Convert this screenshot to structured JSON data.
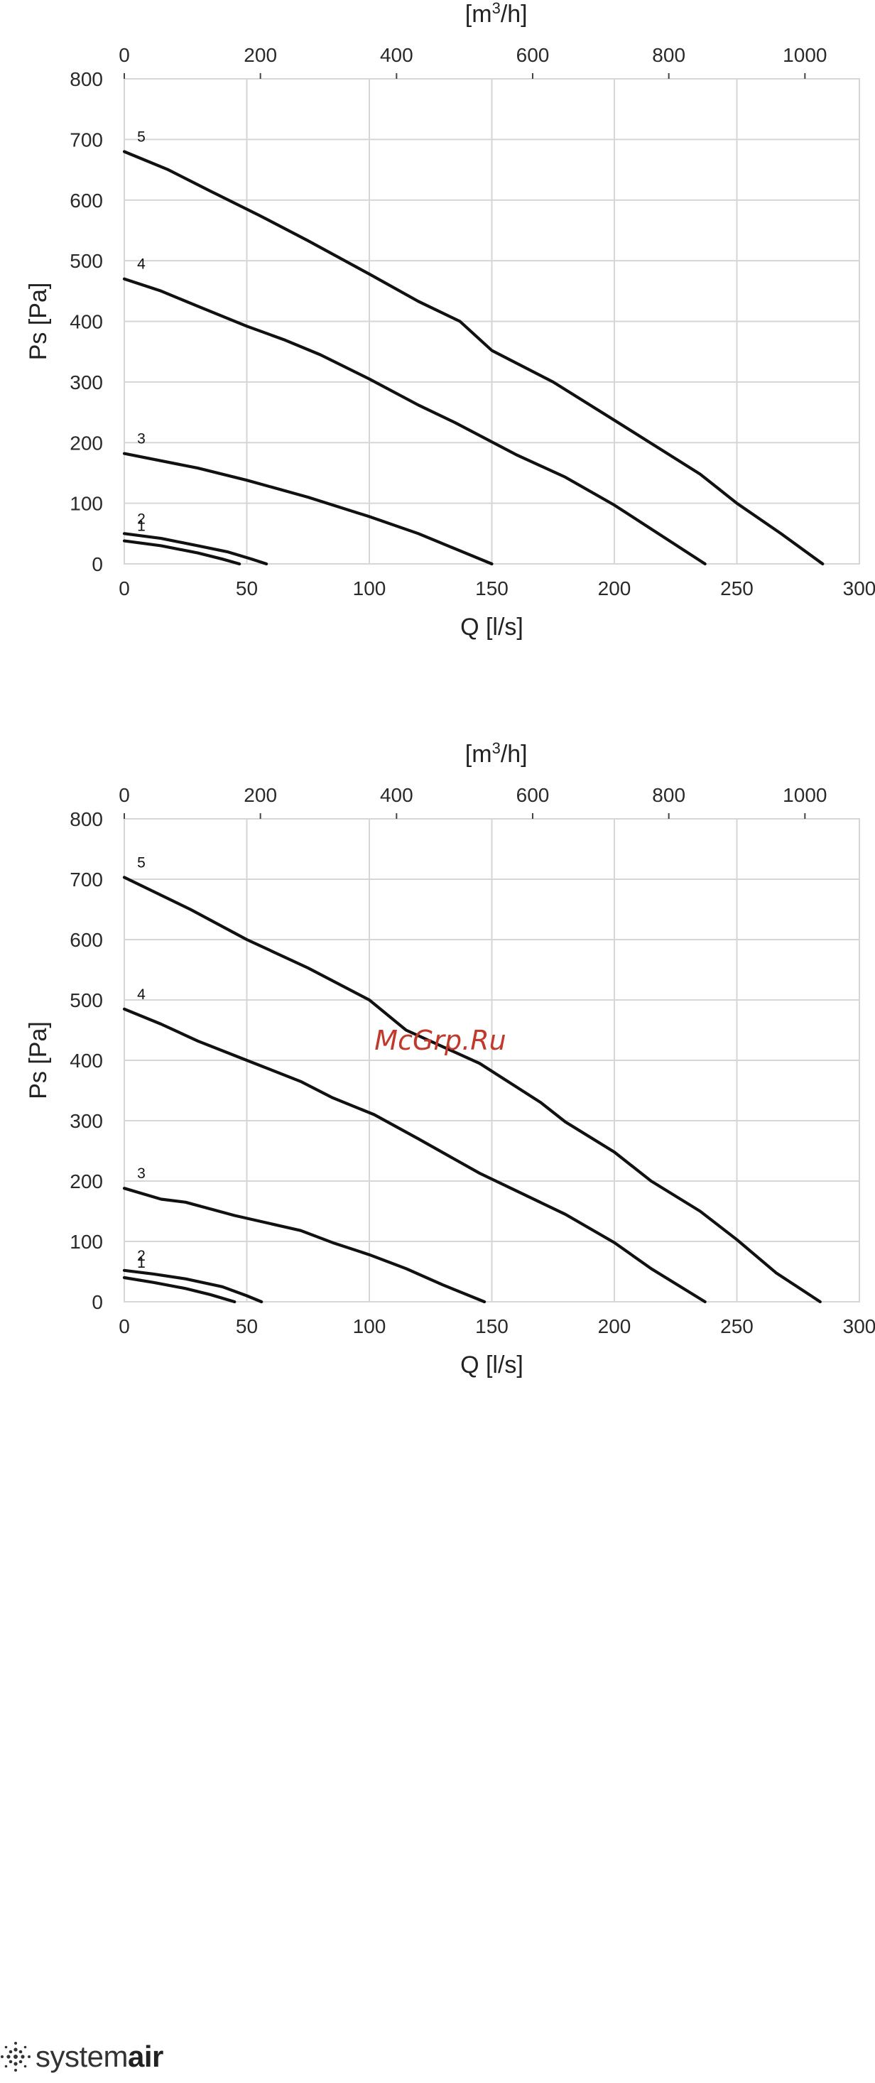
{
  "watermark": "McGrp.Ru",
  "brand": {
    "prefix": "system",
    "suffix": "air"
  },
  "chart_data": [
    {
      "type": "line",
      "title": "",
      "xlabel": "Q [l/s]",
      "ylabel": "Ps [Pa]",
      "x2label": "[m",
      "x2label_sup": "3",
      "x2label_end": "/h]",
      "xlim": [
        0,
        300
      ],
      "ylim": [
        0,
        800
      ],
      "x2lim": [
        0,
        1080
      ],
      "xticks": [
        0,
        50,
        100,
        150,
        200,
        250,
        300
      ],
      "yticks": [
        0,
        100,
        200,
        300,
        400,
        500,
        600,
        700,
        800
      ],
      "x2ticks": [
        0,
        200,
        400,
        600,
        800,
        1000
      ],
      "grid": true,
      "series": [
        {
          "name": "1",
          "points": [
            [
              0,
              38
            ],
            [
              15,
              30
            ],
            [
              30,
              18
            ],
            [
              40,
              8
            ],
            [
              47,
              0
            ]
          ]
        },
        {
          "name": "2",
          "points": [
            [
              0,
              50
            ],
            [
              15,
              42
            ],
            [
              30,
              30
            ],
            [
              42,
              20
            ],
            [
              52,
              8
            ],
            [
              58,
              0
            ]
          ]
        },
        {
          "name": "3",
          "points": [
            [
              0,
              182
            ],
            [
              30,
              158
            ],
            [
              50,
              138
            ],
            [
              75,
              110
            ],
            [
              100,
              78
            ],
            [
              120,
              50
            ],
            [
              135,
              25
            ],
            [
              150,
              0
            ]
          ]
        },
        {
          "name": "4",
          "points": [
            [
              0,
              470
            ],
            [
              15,
              450
            ],
            [
              30,
              425
            ],
            [
              50,
              392
            ],
            [
              65,
              370
            ],
            [
              80,
              345
            ],
            [
              100,
              305
            ],
            [
              120,
              262
            ],
            [
              135,
              233
            ],
            [
              160,
              180
            ],
            [
              180,
              143
            ],
            [
              200,
              97
            ],
            [
              237,
              0
            ]
          ]
        },
        {
          "name": "5",
          "points": [
            [
              0,
              680
            ],
            [
              18,
              650
            ],
            [
              35,
              615
            ],
            [
              55,
              575
            ],
            [
              75,
              533
            ],
            [
              100,
              478
            ],
            [
              120,
              433
            ],
            [
              137,
              400
            ],
            [
              150,
              352
            ],
            [
              175,
              300
            ],
            [
              200,
              237
            ],
            [
              235,
              148
            ],
            [
              250,
              100
            ],
            [
              268,
              50
            ],
            [
              285,
              0
            ]
          ]
        }
      ]
    },
    {
      "type": "line",
      "title": "",
      "xlabel": "Q [l/s]",
      "ylabel": "Ps [Pa]",
      "x2label": "[m",
      "x2label_sup": "3",
      "x2label_end": "/h]",
      "xlim": [
        0,
        300
      ],
      "ylim": [
        0,
        800
      ],
      "x2lim": [
        0,
        1080
      ],
      "xticks": [
        0,
        50,
        100,
        150,
        200,
        250,
        300
      ],
      "yticks": [
        0,
        100,
        200,
        300,
        400,
        500,
        600,
        700,
        800
      ],
      "x2ticks": [
        0,
        200,
        400,
        600,
        800,
        1000
      ],
      "grid": true,
      "series": [
        {
          "name": "1",
          "points": [
            [
              0,
              40
            ],
            [
              12,
              32
            ],
            [
              25,
              22
            ],
            [
              35,
              12
            ],
            [
              45,
              0
            ]
          ]
        },
        {
          "name": "2",
          "points": [
            [
              0,
              52
            ],
            [
              12,
              46
            ],
            [
              25,
              38
            ],
            [
              40,
              25
            ],
            [
              50,
              10
            ],
            [
              56,
              0
            ]
          ]
        },
        {
          "name": "3",
          "points": [
            [
              0,
              188
            ],
            [
              15,
              170
            ],
            [
              25,
              165
            ],
            [
              45,
              143
            ],
            [
              72,
              118
            ],
            [
              85,
              98
            ],
            [
              100,
              78
            ],
            [
              115,
              55
            ],
            [
              130,
              28
            ],
            [
              147,
              0
            ]
          ]
        },
        {
          "name": "4",
          "points": [
            [
              0,
              485
            ],
            [
              15,
              460
            ],
            [
              30,
              432
            ],
            [
              50,
              400
            ],
            [
              72,
              365
            ],
            [
              85,
              338
            ],
            [
              102,
              310
            ],
            [
              120,
              270
            ],
            [
              145,
              213
            ],
            [
              180,
              145
            ],
            [
              200,
              98
            ],
            [
              215,
              55
            ],
            [
              237,
              0
            ]
          ]
        },
        {
          "name": "5",
          "points": [
            [
              0,
              703
            ],
            [
              27,
              650
            ],
            [
              50,
              600
            ],
            [
              75,
              553
            ],
            [
              100,
              500
            ],
            [
              115,
              450
            ],
            [
              145,
              395
            ],
            [
              170,
              330
            ],
            [
              180,
              298
            ],
            [
              200,
              248
            ],
            [
              215,
              200
            ],
            [
              235,
              150
            ],
            [
              250,
              103
            ],
            [
              266,
              48
            ],
            [
              284,
              0
            ]
          ]
        }
      ]
    }
  ]
}
